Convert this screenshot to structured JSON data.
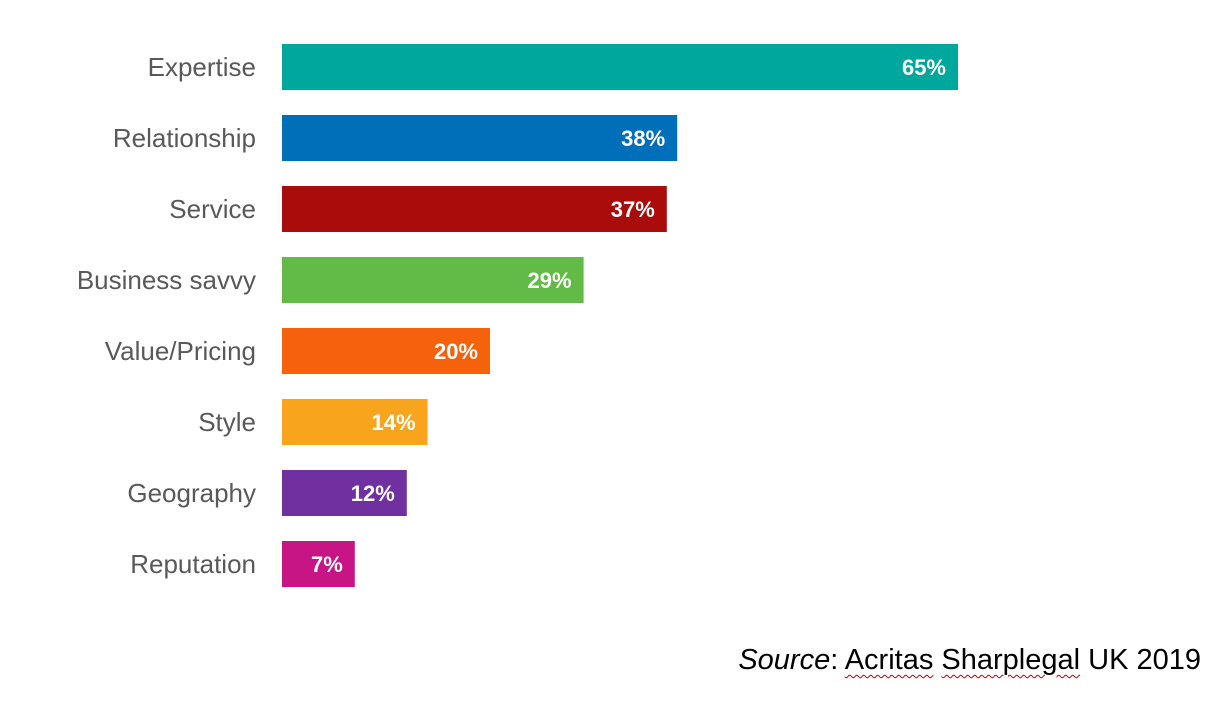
{
  "chart_data": {
    "type": "bar",
    "orientation": "horizontal",
    "categories": [
      "Expertise",
      "Relationship",
      "Service",
      "Business savvy",
      "Value/Pricing",
      "Style",
      "Geography",
      "Reputation"
    ],
    "values": [
      65,
      38,
      37,
      29,
      20,
      14,
      12,
      7
    ],
    "value_labels": [
      "65%",
      "38%",
      "37%",
      "29%",
      "20%",
      "14%",
      "12%",
      "7%"
    ],
    "bar_colors": [
      "#00A79D",
      "#006FB9",
      "#A90C0A",
      "#62BB47",
      "#F5620B",
      "#F8A51D",
      "#7030A0",
      "#C71585"
    ],
    "unit": "%",
    "xlim": [
      0,
      65
    ],
    "grid": false,
    "legend": "none"
  },
  "source_note": {
    "prefix": "Source",
    "separator": ": ",
    "word1": "Acritas",
    "word2": "Sharplegal",
    "suffix": " UK 2019"
  }
}
